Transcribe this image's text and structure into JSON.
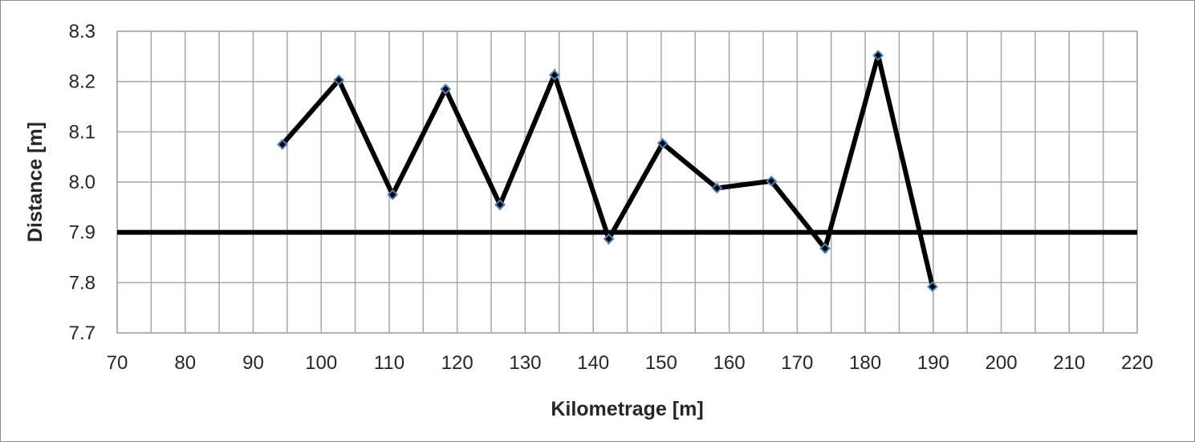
{
  "chart_data": {
    "type": "line",
    "title": "",
    "xlabel": "Kilometrage [m]",
    "ylabel": "Distance [m]",
    "xlim": [
      70,
      220
    ],
    "ylim": [
      7.7,
      8.3
    ],
    "x_ticks": [
      "70",
      "80",
      "90",
      "100",
      "110",
      "120",
      "130",
      "140",
      "150",
      "160",
      "170",
      "180",
      "190",
      "200",
      "210",
      "220"
    ],
    "y_ticks": [
      "7.7",
      "7.8",
      "7.9",
      "8.0",
      "8.1",
      "8.2",
      "8.3"
    ],
    "x_minor_step": 5,
    "y_major_step": 0.1,
    "grid": true,
    "legend": "none",
    "series": [
      {
        "x": [
          94.3,
          102.6,
          110.5,
          118.3,
          126.3,
          134.3,
          142.3,
          150.2,
          158.2,
          166.2,
          174.1,
          181.9,
          189.9
        ],
        "y": [
          8.075,
          8.203,
          7.975,
          8.185,
          7.955,
          8.213,
          7.887,
          8.077,
          7.988,
          8.002,
          7.868,
          8.252,
          7.792
        ],
        "color": "#000000",
        "marker": "diamond",
        "marker_color": "#4f81bd"
      }
    ],
    "reference_line": {
      "y": 7.9,
      "color": "#000000"
    }
  }
}
